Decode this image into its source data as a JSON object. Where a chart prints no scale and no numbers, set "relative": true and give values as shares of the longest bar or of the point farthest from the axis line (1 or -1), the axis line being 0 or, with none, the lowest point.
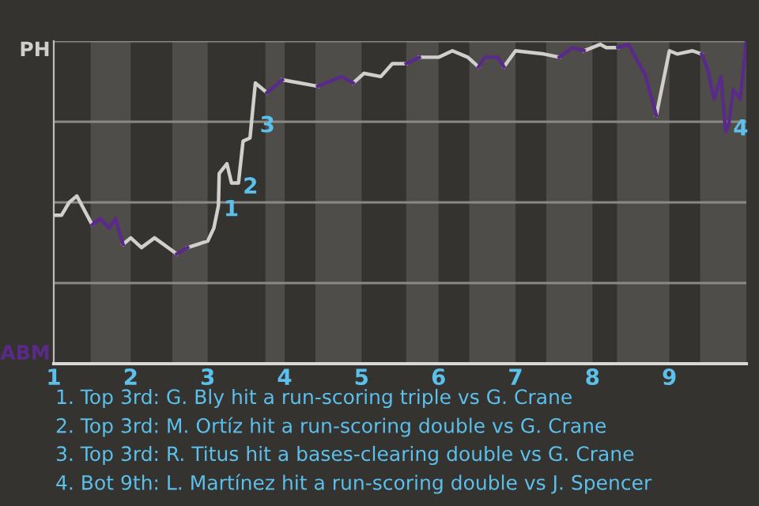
{
  "chart_data": {
    "type": "line",
    "xlim": [
      1,
      10
    ],
    "xticks": [
      1,
      2,
      3,
      4,
      5,
      6,
      7,
      8,
      9
    ],
    "relative": true,
    "series": [
      {
        "color": "#d0cfcc",
        "x": [
          1.0,
          1.1,
          1.2,
          1.3,
          1.5,
          null,
          1.9,
          2.0,
          2.14,
          2.31,
          2.6,
          null,
          2.74,
          3.0,
          3.08,
          3.14,
          3.15,
          3.25,
          3.31,
          3.4,
          3.46,
          3.55,
          3.62,
          3.77,
          null,
          3.97,
          4.2,
          4.43,
          null,
          4.89,
          5.03,
          5.25,
          5.4,
          5.58,
          null,
          5.75,
          6.0,
          6.18,
          6.38,
          6.52,
          null,
          6.85,
          7.0,
          7.37,
          7.57,
          null,
          7.89,
          8.1,
          8.18,
          8.33,
          null,
          8.83,
          9.0,
          9.1,
          9.3,
          9.42
        ],
        "values": [
          0.46,
          0.46,
          0.5,
          0.52,
          0.43,
          null,
          0.37,
          0.39,
          0.36,
          0.39,
          0.34,
          null,
          0.36,
          0.38,
          0.42,
          0.49,
          0.59,
          0.62,
          0.56,
          0.56,
          0.69,
          0.7,
          0.87,
          0.84,
          null,
          0.88,
          0.87,
          0.86,
          null,
          0.87,
          0.9,
          0.89,
          0.93,
          0.93,
          null,
          0.95,
          0.95,
          0.97,
          0.95,
          0.92,
          null,
          0.92,
          0.97,
          0.96,
          0.95,
          null,
          0.97,
          0.99,
          0.98,
          0.98,
          null,
          0.77,
          0.97,
          0.96,
          0.97,
          0.96
        ]
      },
      {
        "color": "#5a2a8a",
        "x": [
          1.5,
          1.6,
          1.72,
          1.8,
          1.9,
          null,
          2.6,
          2.74,
          null,
          3.77,
          3.97,
          null,
          4.43,
          4.74,
          4.89,
          null,
          5.58,
          5.75,
          null,
          6.52,
          6.6,
          6.77,
          6.85,
          null,
          7.57,
          7.74,
          7.89,
          null,
          8.33,
          8.47,
          8.58,
          8.68,
          8.83,
          null,
          9.42,
          9.5,
          9.58,
          9.67,
          9.73,
          9.77,
          9.83,
          9.92,
          10.0
        ],
        "values": [
          0.43,
          0.45,
          0.42,
          0.45,
          0.37,
          null,
          0.34,
          0.36,
          null,
          0.84,
          0.88,
          null,
          0.86,
          0.89,
          0.87,
          null,
          0.93,
          0.95,
          null,
          0.92,
          0.95,
          0.95,
          0.92,
          null,
          0.95,
          0.98,
          0.97,
          null,
          0.98,
          0.99,
          0.94,
          0.9,
          0.77,
          null,
          0.96,
          0.91,
          0.82,
          0.89,
          0.72,
          0.74,
          0.85,
          0.82,
          1.0
        ]
      }
    ],
    "bands": [
      {
        "axis": "x",
        "from": 1.48,
        "to": 2,
        "color": "#4f4d4a"
      },
      {
        "axis": "x",
        "from": 2.54,
        "to": 3,
        "color": "#4f4d4a"
      },
      {
        "axis": "x",
        "from": 3.75,
        "to": 4,
        "color": "#4f4d4a"
      },
      {
        "axis": "x",
        "from": 4.4,
        "to": 5,
        "color": "#4f4d4a"
      },
      {
        "axis": "x",
        "from": 5.58,
        "to": 6,
        "color": "#4f4d4a"
      },
      {
        "axis": "x",
        "from": 6.4,
        "to": 7,
        "color": "#4f4d4a"
      },
      {
        "axis": "x",
        "from": 7.4,
        "to": 8,
        "color": "#4f4d4a"
      },
      {
        "axis": "x",
        "from": 8.32,
        "to": 9,
        "color": "#4f4d4a"
      },
      {
        "axis": "x",
        "from": 9.4,
        "to": 10,
        "color": "#4f4d4a"
      }
    ],
    "ref_lines": [
      {
        "axis": "y",
        "value": 0.25,
        "color": "#8a8986"
      },
      {
        "axis": "y",
        "value": 0.5,
        "color": "#8a8986"
      },
      {
        "axis": "y",
        "value": 0.75,
        "color": "#8a8986"
      },
      {
        "axis": "y",
        "value": 1,
        "color": "#8a8986"
      }
    ],
    "annotations": [
      "PH",
      "ABM",
      {
        "text": "1",
        "x": 3.15,
        "y": 0.49
      },
      {
        "text": "2",
        "x": 3.4,
        "y": 0.56
      },
      {
        "text": "3",
        "x": 3.62,
        "y": 0.75
      },
      {
        "text": "4",
        "x": 9.77,
        "y": 0.74
      },
      "1. Top 3rd: G. Bly hit a run-scoring triple vs G. Crane",
      "2. Top 3rd: M. Ortíz hit a run-scoring double vs G. Crane",
      "3. Top 3rd: R. Titus hit a bases-clearing double vs G. Crane",
      "4. Bot 9th: L. Martínez hit a run-scoring double vs J. Spencer"
    ],
    "grid": false,
    "marker": "none",
    "line_style": "solid"
  }
}
